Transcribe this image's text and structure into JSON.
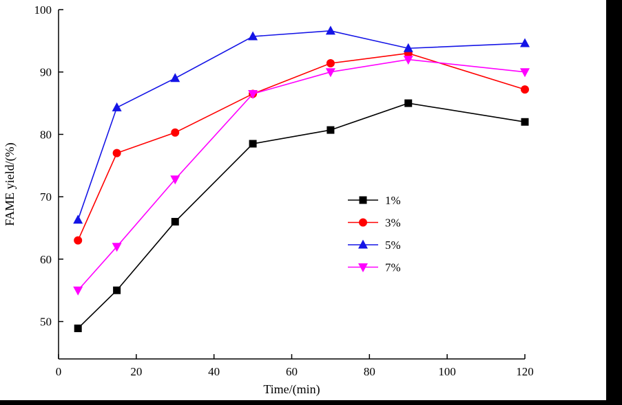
{
  "chart_data": {
    "type": "line",
    "title": "",
    "xlabel": "Time/(min)",
    "ylabel": "FAME yield/(%)",
    "xlim": [
      0,
      120
    ],
    "ylim": [
      44,
      100
    ],
    "xticks": [
      0,
      20,
      40,
      60,
      80,
      100,
      120
    ],
    "yticks": [
      50,
      60,
      70,
      80,
      90,
      100
    ],
    "grid": false,
    "legend_position": "inside-center-right",
    "x": [
      5,
      15,
      30,
      50,
      70,
      90,
      120
    ],
    "series": [
      {
        "name": "1%",
        "color": "#000000",
        "marker": "square",
        "values": [
          48.9,
          55.0,
          66.0,
          78.5,
          80.7,
          85.0,
          82.0
        ]
      },
      {
        "name": "3%",
        "color": "#ff0000",
        "marker": "circle",
        "values": [
          63.0,
          77.0,
          80.3,
          86.5,
          91.4,
          93.0,
          87.2
        ]
      },
      {
        "name": "5%",
        "color": "#1414e6",
        "marker": "triangle-up",
        "values": [
          66.3,
          84.3,
          89.0,
          95.7,
          96.6,
          93.8,
          94.6
        ]
      },
      {
        "name": "7%",
        "color": "#ff00ff",
        "marker": "triangle-down",
        "values": [
          55.0,
          62.0,
          72.8,
          86.5,
          90.0,
          92.0,
          90.0
        ]
      }
    ]
  }
}
